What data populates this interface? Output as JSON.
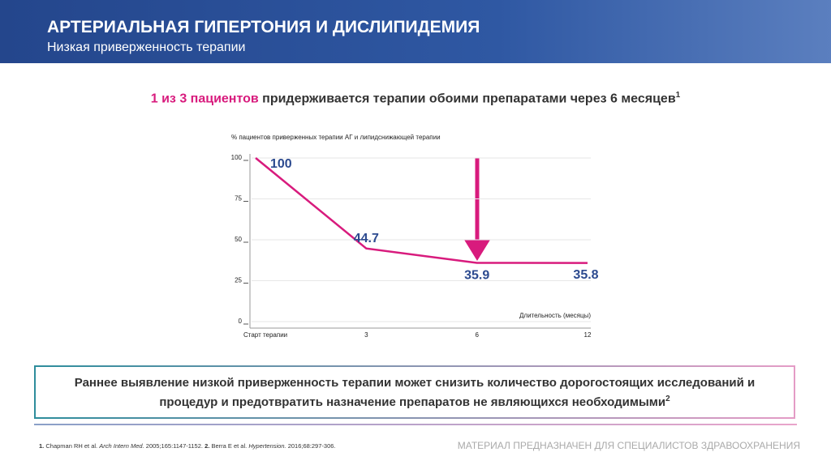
{
  "header": {
    "title": "АРТЕРИАЛЬНАЯ ГИПЕРТОНИЯ И ДИСЛИПИДЕМИЯ",
    "subtitle": "Низкая приверженность терапии"
  },
  "headline": {
    "highlight": "1 из 3 пациентов",
    "text": "придерживается терапии обоими препаратами через 6 месяцев",
    "superscript": "1"
  },
  "chart_data": {
    "type": "line",
    "ylabel": "% пациентов приверженных терапии АГ и липидснижающей терапии",
    "xlabel": "Длительность (месяцы)",
    "categories": [
      "Старт терапии",
      "3",
      "6",
      "12"
    ],
    "values": [
      100,
      44.7,
      35.9,
      35.8
    ],
    "color": "#d81b7d",
    "ylim": [
      0,
      100
    ],
    "yticks": [
      0,
      25,
      50,
      75,
      100
    ],
    "grid": true
  },
  "callout": {
    "text": "Раннее выявление низкой приверженность терапии может снизить количество дорогостоящих исследований и процедур и предотвратить назначение препаратов не являющихся необходимыми",
    "superscript": "2"
  },
  "footnote": {
    "ref1_num": "1.",
    "ref1_authors": "Chapman RH et al.",
    "ref1_journal": "Arch Intern Med.",
    "ref1_details": "2005;165:1147-1152.",
    "ref2_num": "2.",
    "ref2_authors": "Berra E et al.",
    "ref2_journal": "Hypertension.",
    "ref2_details": "2016;68:297-306."
  },
  "disclaimer": "МАТЕРИАЛ ПРЕДНАЗНАЧЕН ДЛЯ СПЕЦИАЛИСТОВ ЗДРАВООХРАНЕНИЯ"
}
